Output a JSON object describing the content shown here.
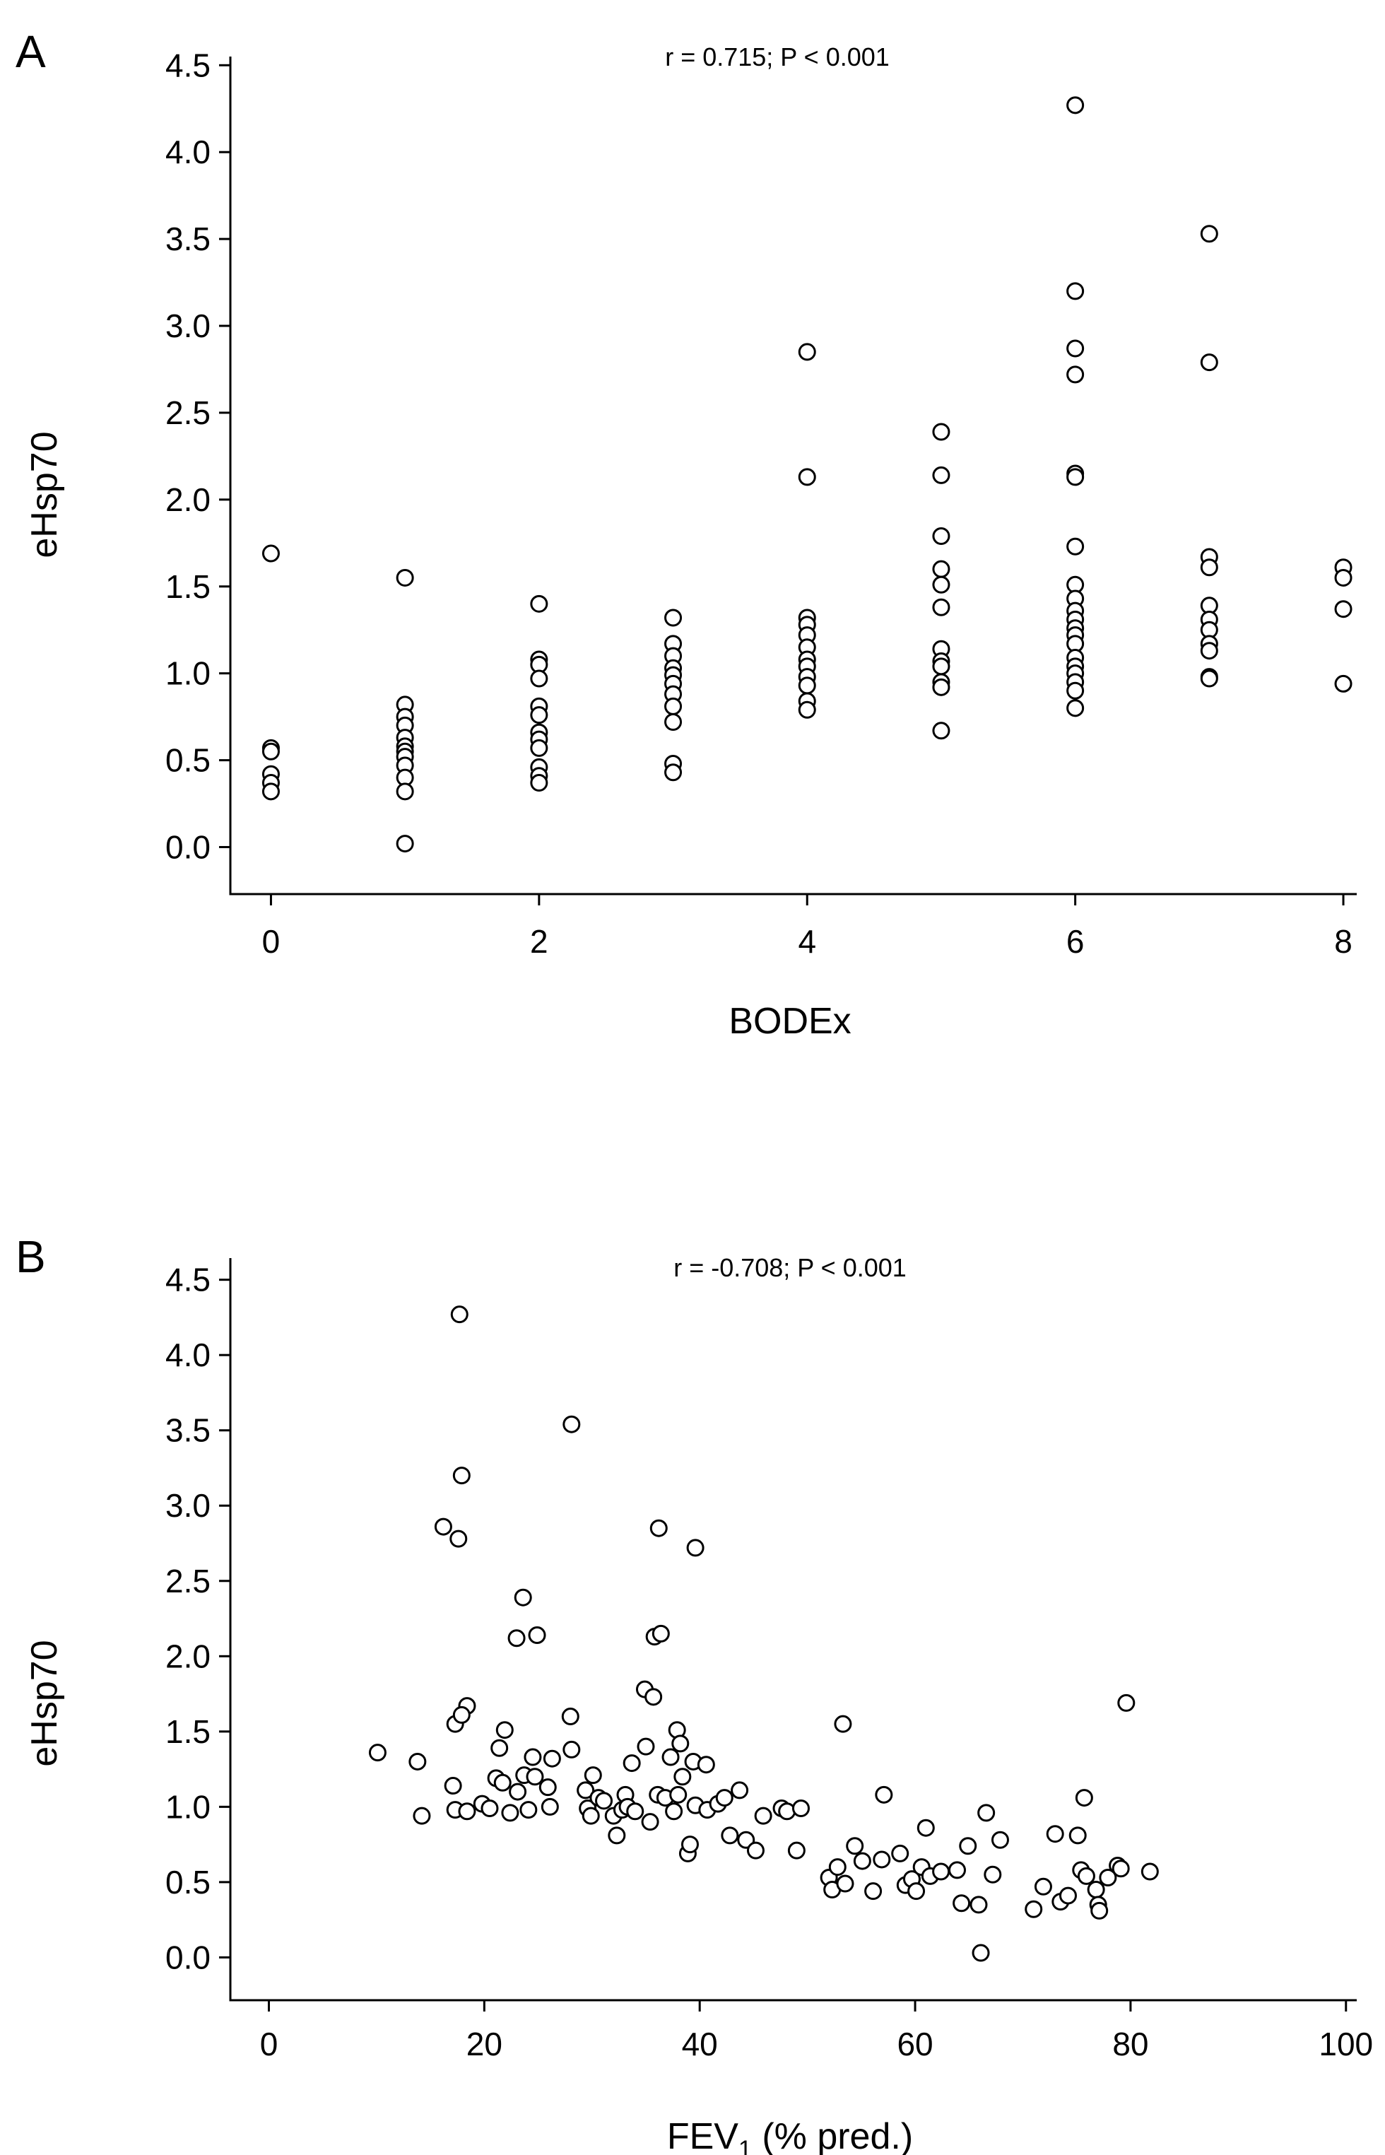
{
  "chart_data": [
    {
      "type": "scatter",
      "panel_label": "A",
      "annotation": "r = 0.715; P < 0.001",
      "xlabel": "BODEx",
      "ylabel": "eHsp70",
      "xlim": [
        -0.15,
        8.1
      ],
      "ylim": [
        -0.12,
        4.55
      ],
      "xticks": [
        0,
        2,
        4,
        6,
        8
      ],
      "xtick_labels": [
        "0",
        "2",
        "4",
        "6",
        "8"
      ],
      "yticks": [
        0.0,
        0.5,
        1.0,
        1.5,
        2.0,
        2.5,
        3.0,
        3.5,
        4.0,
        4.5
      ],
      "ytick_labels": [
        "0.0",
        "0.5",
        "1.0",
        "1.5",
        "2.0",
        "2.5",
        "3.0",
        "3.5",
        "4.0",
        "4.5"
      ],
      "points": [
        [
          0,
          1.69
        ],
        [
          0,
          0.57
        ],
        [
          0,
          0.55
        ],
        [
          0,
          0.42
        ],
        [
          0,
          0.37
        ],
        [
          0,
          0.32
        ],
        [
          1,
          1.55
        ],
        [
          1,
          0.82
        ],
        [
          1,
          0.75
        ],
        [
          1,
          0.7
        ],
        [
          1,
          0.63
        ],
        [
          1,
          0.58
        ],
        [
          1,
          0.55
        ],
        [
          1,
          0.52
        ],
        [
          1,
          0.47
        ],
        [
          1,
          0.4
        ],
        [
          1,
          0.32
        ],
        [
          1,
          0.02
        ],
        [
          2,
          1.4
        ],
        [
          2,
          1.08
        ],
        [
          2,
          1.05
        ],
        [
          2,
          0.97
        ],
        [
          2,
          0.81
        ],
        [
          2,
          0.76
        ],
        [
          2,
          0.66
        ],
        [
          2,
          0.62
        ],
        [
          2,
          0.57
        ],
        [
          2,
          0.46
        ],
        [
          2,
          0.41
        ],
        [
          2,
          0.37
        ],
        [
          3,
          1.32
        ],
        [
          3,
          1.17
        ],
        [
          3,
          1.1
        ],
        [
          3,
          1.03
        ],
        [
          3,
          0.99
        ],
        [
          3,
          0.94
        ],
        [
          3,
          0.88
        ],
        [
          3,
          0.81
        ],
        [
          3,
          0.72
        ],
        [
          3,
          0.48
        ],
        [
          3,
          0.43
        ],
        [
          4,
          2.85
        ],
        [
          4,
          2.13
        ],
        [
          4,
          1.32
        ],
        [
          4,
          1.28
        ],
        [
          4,
          1.22
        ],
        [
          4,
          1.15
        ],
        [
          4,
          1.08
        ],
        [
          4,
          1.04
        ],
        [
          4,
          0.98
        ],
        [
          4,
          0.93
        ],
        [
          4,
          0.84
        ],
        [
          4,
          0.79
        ],
        [
          5,
          2.39
        ],
        [
          5,
          2.14
        ],
        [
          5,
          1.79
        ],
        [
          5,
          1.6
        ],
        [
          5,
          1.51
        ],
        [
          5,
          1.38
        ],
        [
          5,
          1.14
        ],
        [
          5,
          1.07
        ],
        [
          5,
          1.04
        ],
        [
          5,
          0.95
        ],
        [
          5,
          0.92
        ],
        [
          5,
          0.67
        ],
        [
          6,
          4.27
        ],
        [
          6,
          3.2
        ],
        [
          6,
          2.87
        ],
        [
          6,
          2.72
        ],
        [
          6,
          2.15
        ],
        [
          6,
          2.13
        ],
        [
          6,
          1.73
        ],
        [
          6,
          1.51
        ],
        [
          6,
          1.43
        ],
        [
          6,
          1.36
        ],
        [
          6,
          1.31
        ],
        [
          6,
          1.26
        ],
        [
          6,
          1.22
        ],
        [
          6,
          1.17
        ],
        [
          6,
          1.09
        ],
        [
          6,
          1.04
        ],
        [
          6,
          1.0
        ],
        [
          6,
          0.95
        ],
        [
          6,
          0.9
        ],
        [
          6,
          0.8
        ],
        [
          7,
          3.53
        ],
        [
          7,
          2.79
        ],
        [
          7,
          1.67
        ],
        [
          7,
          1.61
        ],
        [
          7,
          1.39
        ],
        [
          7,
          1.31
        ],
        [
          7,
          1.25
        ],
        [
          7,
          1.17
        ],
        [
          7,
          1.13
        ],
        [
          7,
          0.98
        ],
        [
          7,
          0.97
        ],
        [
          8,
          1.61
        ],
        [
          8,
          1.55
        ],
        [
          8,
          1.37
        ],
        [
          8,
          0.94
        ]
      ]
    },
    {
      "type": "scatter",
      "panel_label": "B",
      "annotation": "r = -0.708; P < 0.001",
      "xlabel": "FEV",
      "xlabel_sub": "1",
      "xlabel_suffix": " (% pred.)",
      "ylabel": "eHsp70",
      "xlim": [
        -2,
        101
      ],
      "ylim": [
        -0.12,
        4.55
      ],
      "xticks": [
        0,
        20,
        40,
        60,
        80,
        100
      ],
      "xtick_labels": [
        "0",
        "20",
        "40",
        "60",
        "80",
        "100"
      ],
      "yticks": [
        0.0,
        0.5,
        1.0,
        1.5,
        2.0,
        2.5,
        3.0,
        3.5,
        4.0,
        4.5
      ],
      "ytick_labels": [
        "0.0",
        "0.5",
        "1.0",
        "1.5",
        "2.0",
        "2.5",
        "3.0",
        "3.5",
        "4.0",
        "4.5"
      ],
      "points": [
        [
          17.7,
          4.27
        ],
        [
          28.1,
          3.54
        ],
        [
          17.9,
          3.2
        ],
        [
          16.2,
          2.86
        ],
        [
          17.6,
          2.78
        ],
        [
          36.2,
          2.85
        ],
        [
          39.6,
          2.72
        ],
        [
          23.6,
          2.39
        ],
        [
          23.0,
          2.12
        ],
        [
          24.9,
          2.14
        ],
        [
          35.8,
          2.13
        ],
        [
          36.4,
          2.15
        ],
        [
          34.9,
          1.78
        ],
        [
          35.7,
          1.73
        ],
        [
          18.4,
          1.67
        ],
        [
          17.3,
          1.55
        ],
        [
          17.9,
          1.61
        ],
        [
          28.0,
          1.6
        ],
        [
          53.3,
          1.55
        ],
        [
          79.6,
          1.69
        ],
        [
          10.1,
          1.36
        ],
        [
          13.8,
          1.3
        ],
        [
          21.9,
          1.51
        ],
        [
          21.4,
          1.39
        ],
        [
          24.5,
          1.33
        ],
        [
          26.3,
          1.32
        ],
        [
          28.1,
          1.38
        ],
        [
          33.7,
          1.29
        ],
        [
          35.0,
          1.4
        ],
        [
          37.3,
          1.33
        ],
        [
          37.9,
          1.51
        ],
        [
          38.2,
          1.42
        ],
        [
          39.4,
          1.3
        ],
        [
          40.6,
          1.28
        ],
        [
          14.2,
          0.94
        ],
        [
          17.1,
          1.14
        ],
        [
          17.3,
          0.98
        ],
        [
          18.4,
          0.97
        ],
        [
          19.8,
          1.02
        ],
        [
          20.5,
          0.99
        ],
        [
          21.1,
          1.19
        ],
        [
          21.7,
          1.16
        ],
        [
          22.4,
          0.96
        ],
        [
          23.1,
          1.1
        ],
        [
          23.7,
          1.21
        ],
        [
          24.1,
          0.98
        ],
        [
          24.7,
          1.2
        ],
        [
          25.9,
          1.13
        ],
        [
          26.1,
          1.0
        ],
        [
          29.4,
          1.11
        ],
        [
          29.6,
          0.99
        ],
        [
          29.9,
          0.94
        ],
        [
          30.1,
          1.21
        ],
        [
          30.6,
          1.06
        ],
        [
          31.1,
          1.04
        ],
        [
          32.0,
          0.94
        ],
        [
          32.3,
          0.81
        ],
        [
          32.8,
          0.98
        ],
        [
          33.1,
          1.08
        ],
        [
          33.3,
          1.0
        ],
        [
          34.0,
          0.97
        ],
        [
          35.4,
          0.9
        ],
        [
          36.1,
          1.08
        ],
        [
          36.8,
          1.06
        ],
        [
          37.6,
          0.97
        ],
        [
          38.0,
          1.08
        ],
        [
          38.4,
          1.2
        ],
        [
          38.9,
          0.69
        ],
        [
          39.1,
          0.75
        ],
        [
          39.6,
          1.01
        ],
        [
          40.7,
          0.98
        ],
        [
          41.7,
          1.02
        ],
        [
          42.3,
          1.06
        ],
        [
          42.8,
          0.81
        ],
        [
          43.7,
          1.11
        ],
        [
          44.3,
          0.78
        ],
        [
          45.2,
          0.71
        ],
        [
          45.9,
          0.94
        ],
        [
          47.6,
          0.99
        ],
        [
          48.1,
          0.97
        ],
        [
          49.0,
          0.71
        ],
        [
          49.4,
          0.99
        ],
        [
          52.0,
          0.53
        ],
        [
          52.3,
          0.45
        ],
        [
          52.8,
          0.6
        ],
        [
          53.5,
          0.49
        ],
        [
          54.4,
          0.74
        ],
        [
          55.1,
          0.64
        ],
        [
          56.1,
          0.44
        ],
        [
          56.9,
          0.65
        ],
        [
          57.1,
          1.08
        ],
        [
          58.6,
          0.69
        ],
        [
          59.1,
          0.48
        ],
        [
          59.7,
          0.52
        ],
        [
          60.1,
          0.44
        ],
        [
          60.6,
          0.6
        ],
        [
          61.0,
          0.86
        ],
        [
          61.4,
          0.54
        ],
        [
          62.4,
          0.57
        ],
        [
          63.9,
          0.58
        ],
        [
          64.3,
          0.36
        ],
        [
          64.9,
          0.74
        ],
        [
          65.9,
          0.35
        ],
        [
          66.1,
          0.03
        ],
        [
          66.6,
          0.96
        ],
        [
          67.2,
          0.55
        ],
        [
          67.9,
          0.78
        ],
        [
          71.0,
          0.32
        ],
        [
          71.9,
          0.47
        ],
        [
          73.0,
          0.82
        ],
        [
          73.5,
          0.37
        ],
        [
          74.2,
          0.41
        ],
        [
          75.1,
          0.81
        ],
        [
          75.4,
          0.58
        ],
        [
          75.7,
          1.06
        ],
        [
          75.9,
          0.54
        ],
        [
          76.8,
          0.45
        ],
        [
          77.0,
          0.35
        ],
        [
          77.1,
          0.31
        ],
        [
          77.9,
          0.53
        ],
        [
          78.8,
          0.61
        ],
        [
          79.1,
          0.59
        ],
        [
          81.8,
          0.57
        ]
      ]
    }
  ]
}
